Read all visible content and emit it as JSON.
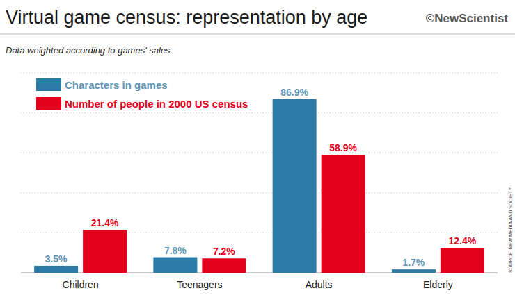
{
  "chart_data": {
    "type": "bar",
    "title": "Virtual game census: representation by age",
    "subtitle": "Data weighted according to games' sales",
    "brand": "©NewScientist",
    "source": "SOURCE: NEW MEDIA AND SOCIETY",
    "categories": [
      "Children",
      "Teenagers",
      "Adults",
      "Elderly"
    ],
    "series": [
      {
        "name": "Characters in games",
        "color": "#2b7ba6",
        "values": [
          3.5,
          7.8,
          86.9,
          1.7
        ],
        "value_labels": [
          "3.5%",
          "7.8%",
          "86.9%",
          "1.7%"
        ]
      },
      {
        "name": "Number of people in 2000 US census",
        "color": "#e2001a",
        "values": [
          21.4,
          7.2,
          58.9,
          12.4
        ],
        "value_labels": [
          "21.4%",
          "7.2%",
          "58.9%",
          "12.4%"
        ]
      }
    ],
    "ylim": [
      0,
      100
    ],
    "yticks": [
      0,
      20,
      40,
      60,
      80,
      100
    ],
    "grid": true,
    "legend": "upper left",
    "data_labels": true,
    "tick_labels": "x"
  }
}
